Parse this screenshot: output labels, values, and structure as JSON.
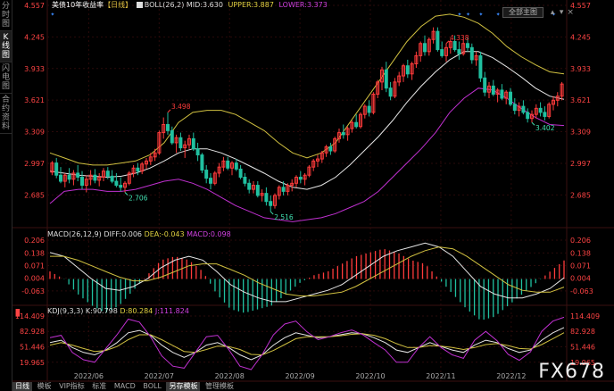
{
  "sidebar": {
    "items": [
      "分时图",
      "K线图",
      "闪电图",
      "合约资料"
    ],
    "active": 1
  },
  "header": {
    "title": "美债10年收益率",
    "period_tag": "【日线】",
    "boll_label": "BOLL(26,2)",
    "mid": "MID:3.630",
    "upper": "UPPER:3.887",
    "lower": "LOWER:3.373",
    "main_select": "全部主图"
  },
  "macd_header": {
    "label": "MACD(26,12,9)",
    "diff": "DIFF:0.006",
    "dea": "DEA:-0.043",
    "macd": "MACD:0.098"
  },
  "kdj_header": {
    "label": "KDJ(9,3,3)",
    "k": "K:90.798",
    "d": "D:80.284",
    "j": "J:111.824"
  },
  "bottom_tabs": [
    "日线",
    "模板",
    "VIP指标",
    "标准",
    "MACD",
    "BOLL",
    "另存模板",
    "管理模板"
  ],
  "bottom_active": [
    0,
    6
  ],
  "watermark": "FX678",
  "colors": {
    "up": "#ff3b3b",
    "down": "#20c0a0",
    "upper": "#d0c040",
    "mid": "#e6e6e6",
    "lower": "#c030d0",
    "axis": "#ff4444"
  },
  "chart_data": [
    {
      "type": "candlestick",
      "y_ticks": [
        "4.557",
        "4.245",
        "3.933",
        "3.621",
        "3.309",
        "2.997",
        "2.685"
      ],
      "x_ticks": [
        "2022/06",
        "2022/07",
        "2022/08",
        "2022/09",
        "2022/10",
        "2022/11",
        "2022/12"
      ],
      "ylim": [
        2.45,
        4.557
      ],
      "annotations": [
        {
          "text": "3.498"
        },
        {
          "text": "2.706"
        },
        {
          "text": "2.516"
        },
        {
          "text": "4.338"
        },
        {
          "text": "3.402"
        }
      ],
      "ohlc": [
        [
          2.91,
          3.02,
          2.88,
          3.0
        ],
        [
          3.0,
          3.05,
          2.85,
          2.88
        ],
        [
          2.88,
          2.96,
          2.8,
          2.82
        ],
        [
          2.82,
          2.9,
          2.76,
          2.88
        ],
        [
          2.88,
          2.95,
          2.8,
          2.84
        ],
        [
          2.84,
          2.93,
          2.78,
          2.9
        ],
        [
          2.9,
          2.98,
          2.82,
          2.86
        ],
        [
          2.86,
          2.92,
          2.74,
          2.78
        ],
        [
          2.78,
          2.88,
          2.71,
          2.84
        ],
        [
          2.84,
          2.93,
          2.78,
          2.88
        ],
        [
          2.88,
          2.94,
          2.8,
          2.83
        ],
        [
          2.83,
          2.9,
          2.77,
          2.86
        ],
        [
          2.86,
          2.95,
          2.82,
          2.92
        ],
        [
          2.92,
          2.96,
          2.84,
          2.87
        ],
        [
          2.87,
          2.93,
          2.8,
          2.82
        ],
        [
          2.82,
          2.9,
          2.76,
          2.78
        ],
        [
          2.78,
          2.86,
          2.72,
          2.76
        ],
        [
          2.76,
          2.82,
          2.71,
          2.8
        ],
        [
          2.8,
          2.92,
          2.78,
          2.9
        ],
        [
          2.9,
          2.98,
          2.86,
          2.95
        ],
        [
          2.95,
          3.0,
          2.88,
          2.92
        ],
        [
          2.92,
          3.01,
          2.89,
          2.99
        ],
        [
          2.99,
          3.05,
          2.94,
          3.02
        ],
        [
          3.02,
          3.1,
          2.98,
          3.06
        ],
        [
          3.06,
          3.14,
          3.02,
          3.1
        ],
        [
          3.1,
          3.32,
          3.08,
          3.3
        ],
        [
          3.3,
          3.45,
          3.24,
          3.38
        ],
        [
          3.38,
          3.5,
          3.28,
          3.32
        ],
        [
          3.32,
          3.36,
          3.18,
          3.2
        ],
        [
          3.2,
          3.28,
          3.1,
          3.25
        ],
        [
          3.25,
          3.3,
          3.12,
          3.15
        ],
        [
          3.15,
          3.22,
          3.05,
          3.18
        ],
        [
          3.18,
          3.28,
          3.14,
          3.24
        ],
        [
          3.24,
          3.3,
          3.12,
          3.14
        ],
        [
          3.14,
          3.2,
          3.02,
          3.08
        ],
        [
          3.08,
          3.1,
          2.9,
          2.93
        ],
        [
          2.93,
          2.98,
          2.8,
          2.85
        ],
        [
          2.85,
          2.9,
          2.74,
          2.8
        ],
        [
          2.8,
          2.92,
          2.78,
          2.9
        ],
        [
          2.9,
          3.0,
          2.86,
          2.96
        ],
        [
          2.96,
          3.06,
          2.92,
          3.02
        ],
        [
          3.02,
          3.06,
          2.93,
          2.95
        ],
        [
          2.95,
          3.02,
          2.88,
          3.0
        ],
        [
          3.0,
          3.04,
          2.92,
          2.94
        ],
        [
          2.94,
          2.98,
          2.84,
          2.86
        ],
        [
          2.86,
          2.9,
          2.77,
          2.8
        ],
        [
          2.8,
          2.84,
          2.7,
          2.74
        ],
        [
          2.74,
          2.82,
          2.7,
          2.78
        ],
        [
          2.78,
          2.82,
          2.66,
          2.68
        ],
        [
          2.68,
          2.74,
          2.62,
          2.7
        ],
        [
          2.7,
          2.76,
          2.58,
          2.62
        ],
        [
          2.62,
          2.68,
          2.52,
          2.58
        ],
        [
          2.58,
          2.7,
          2.55,
          2.68
        ],
        [
          2.68,
          2.78,
          2.64,
          2.76
        ],
        [
          2.76,
          2.82,
          2.68,
          2.72
        ],
        [
          2.72,
          2.8,
          2.68,
          2.78
        ],
        [
          2.78,
          2.84,
          2.72,
          2.8
        ],
        [
          2.8,
          2.88,
          2.76,
          2.86
        ],
        [
          2.86,
          2.92,
          2.8,
          2.84
        ],
        [
          2.84,
          2.9,
          2.78,
          2.88
        ],
        [
          2.88,
          2.98,
          2.86,
          2.96
        ],
        [
          2.96,
          3.04,
          2.92,
          3.02
        ],
        [
          3.02,
          3.08,
          2.96,
          3.04
        ],
        [
          3.04,
          3.12,
          3.0,
          3.1
        ],
        [
          3.1,
          3.18,
          3.06,
          3.16
        ],
        [
          3.16,
          3.2,
          3.08,
          3.12
        ],
        [
          3.12,
          3.26,
          3.1,
          3.24
        ],
        [
          3.24,
          3.34,
          3.2,
          3.3
        ],
        [
          3.3,
          3.38,
          3.24,
          3.28
        ],
        [
          3.28,
          3.36,
          3.22,
          3.34
        ],
        [
          3.34,
          3.42,
          3.3,
          3.4
        ],
        [
          3.4,
          3.48,
          3.34,
          3.36
        ],
        [
          3.36,
          3.5,
          3.34,
          3.48
        ],
        [
          3.48,
          3.58,
          3.44,
          3.56
        ],
        [
          3.56,
          3.62,
          3.46,
          3.5
        ],
        [
          3.5,
          3.7,
          3.48,
          3.68
        ],
        [
          3.68,
          3.82,
          3.64,
          3.8
        ],
        [
          3.8,
          3.95,
          3.72,
          3.92
        ],
        [
          3.92,
          4.0,
          3.7,
          3.74
        ],
        [
          3.74,
          3.8,
          3.62,
          3.66
        ],
        [
          3.66,
          3.84,
          3.64,
          3.8
        ],
        [
          3.8,
          3.9,
          3.76,
          3.86
        ],
        [
          3.86,
          3.98,
          3.8,
          3.96
        ],
        [
          3.96,
          4.02,
          3.84,
          3.88
        ],
        [
          3.88,
          4.0,
          3.82,
          3.98
        ],
        [
          3.98,
          4.1,
          3.94,
          4.06
        ],
        [
          4.06,
          4.2,
          4.0,
          4.18
        ],
        [
          4.18,
          4.26,
          4.06,
          4.1
        ],
        [
          4.1,
          4.24,
          4.06,
          4.22
        ],
        [
          4.22,
          4.34,
          4.18,
          4.3
        ],
        [
          4.3,
          4.34,
          4.1,
          4.12
        ],
        [
          4.12,
          4.2,
          4.04,
          4.06
        ],
        [
          4.06,
          4.18,
          4.0,
          4.14
        ],
        [
          4.14,
          4.22,
          4.08,
          4.2
        ],
        [
          4.2,
          4.26,
          4.1,
          4.12
        ],
        [
          4.12,
          4.2,
          4.02,
          4.08
        ],
        [
          4.08,
          4.22,
          4.06,
          4.18
        ],
        [
          4.18,
          4.24,
          4.1,
          4.14
        ],
        [
          4.14,
          4.18,
          3.98,
          4.02
        ],
        [
          4.02,
          4.1,
          3.96,
          4.06
        ],
        [
          4.06,
          4.1,
          3.8,
          3.84
        ],
        [
          3.84,
          3.9,
          3.66,
          3.7
        ],
        [
          3.7,
          3.8,
          3.64,
          3.76
        ],
        [
          3.76,
          3.82,
          3.66,
          3.68
        ],
        [
          3.68,
          3.74,
          3.6,
          3.72
        ],
        [
          3.72,
          3.78,
          3.62,
          3.64
        ],
        [
          3.64,
          3.72,
          3.58,
          3.7
        ],
        [
          3.7,
          3.74,
          3.56,
          3.58
        ],
        [
          3.58,
          3.64,
          3.48,
          3.52
        ],
        [
          3.52,
          3.6,
          3.46,
          3.56
        ],
        [
          3.56,
          3.62,
          3.48,
          3.5
        ],
        [
          3.5,
          3.54,
          3.4,
          3.44
        ],
        [
          3.44,
          3.52,
          3.4,
          3.48
        ],
        [
          3.48,
          3.58,
          3.44,
          3.54
        ],
        [
          3.54,
          3.6,
          3.46,
          3.5
        ],
        [
          3.5,
          3.56,
          3.42,
          3.46
        ],
        [
          3.46,
          3.6,
          3.44,
          3.58
        ],
        [
          3.58,
          3.66,
          3.52,
          3.62
        ],
        [
          3.62,
          3.7,
          3.56,
          3.66
        ],
        [
          3.66,
          3.8,
          3.62,
          3.78
        ]
      ],
      "boll": {
        "upper": [
          3.1,
          3.05,
          3.0,
          2.98,
          2.98,
          3.0,
          3.02,
          3.08,
          3.2,
          3.4,
          3.5,
          3.52,
          3.52,
          3.48,
          3.4,
          3.32,
          3.2,
          3.1,
          3.05,
          3.1,
          3.2,
          3.4,
          3.6,
          3.8,
          4.0,
          4.2,
          4.35,
          4.45,
          4.47,
          4.44,
          4.38,
          4.28,
          4.15,
          4.05,
          3.97,
          3.9,
          3.88
        ],
        "mid": [
          2.92,
          2.9,
          2.88,
          2.87,
          2.86,
          2.87,
          2.9,
          2.95,
          3.02,
          3.1,
          3.14,
          3.14,
          3.1,
          3.04,
          2.97,
          2.9,
          2.82,
          2.76,
          2.74,
          2.78,
          2.86,
          2.98,
          3.12,
          3.26,
          3.42,
          3.6,
          3.76,
          3.9,
          4.02,
          4.1,
          4.1,
          4.04,
          3.95,
          3.85,
          3.74,
          3.66,
          3.63
        ],
        "lower": [
          2.6,
          2.72,
          2.74,
          2.74,
          2.72,
          2.72,
          2.74,
          2.78,
          2.82,
          2.84,
          2.8,
          2.74,
          2.66,
          2.58,
          2.52,
          2.46,
          2.44,
          2.42,
          2.44,
          2.46,
          2.5,
          2.56,
          2.62,
          2.72,
          2.86,
          3.0,
          3.14,
          3.3,
          3.5,
          3.64,
          3.74,
          3.72,
          3.64,
          3.54,
          3.45,
          3.38,
          3.37
        ]
      }
    },
    {
      "type": "macd",
      "y_ticks": [
        "0.206",
        "0.138",
        "0.071",
        "0.004",
        "-0.063"
      ],
      "ylim": [
        -0.13,
        0.22
      ],
      "diff": [
        0.14,
        0.12,
        0.06,
        0.0,
        -0.05,
        -0.06,
        -0.04,
        0.0,
        0.06,
        0.1,
        0.12,
        0.1,
        0.04,
        -0.03,
        -0.07,
        -0.1,
        -0.12,
        -0.12,
        -0.1,
        -0.08,
        -0.06,
        -0.03,
        0.02,
        0.07,
        0.12,
        0.15,
        0.17,
        0.19,
        0.17,
        0.12,
        0.04,
        -0.04,
        -0.08,
        -0.1,
        -0.1,
        -0.08,
        -0.05,
        0.006
      ],
      "dea": [
        0.12,
        0.12,
        0.1,
        0.07,
        0.04,
        0.01,
        -0.01,
        -0.01,
        0.01,
        0.04,
        0.07,
        0.08,
        0.08,
        0.05,
        0.02,
        -0.02,
        -0.05,
        -0.08,
        -0.09,
        -0.09,
        -0.08,
        -0.07,
        -0.04,
        0.0,
        0.04,
        0.08,
        0.12,
        0.15,
        0.17,
        0.16,
        0.12,
        0.07,
        0.02,
        -0.03,
        -0.06,
        -0.07,
        -0.07,
        -0.043
      ]
    },
    {
      "type": "kdj",
      "y_ticks": [
        "114.409",
        "82.928",
        "51.446",
        "19.965"
      ],
      "ylim": [
        5,
        118
      ],
      "k": [
        60,
        65,
        50,
        40,
        35,
        45,
        60,
        80,
        85,
        75,
        55,
        40,
        30,
        40,
        55,
        60,
        50,
        35,
        25,
        35,
        55,
        70,
        80,
        75,
        70,
        72,
        76,
        80,
        78,
        70,
        60,
        45,
        40,
        50,
        60,
        52,
        45,
        40,
        55,
        65,
        60,
        48,
        40,
        45,
        65,
        80,
        90.8
      ],
      "d": [
        55,
        60,
        55,
        48,
        42,
        44,
        52,
        66,
        76,
        76,
        66,
        54,
        42,
        40,
        46,
        53,
        52,
        46,
        36,
        35,
        44,
        56,
        68,
        72,
        72,
        72,
        74,
        77,
        78,
        75,
        68,
        58,
        50,
        50,
        54,
        53,
        50,
        46,
        50,
        56,
        58,
        54,
        48,
        47,
        56,
        68,
        80.3
      ],
      "j": [
        70,
        75,
        40,
        25,
        20,
        48,
        76,
        108,
        102,
        72,
        33,
        12,
        8,
        40,
        72,
        75,
        46,
        12,
        5,
        36,
        76,
        98,
        104,
        82,
        66,
        72,
        80,
        86,
        76,
        60,
        45,
        20,
        20,
        50,
        72,
        50,
        35,
        28,
        65,
        83,
        64,
        36,
        24,
        41,
        83,
        104,
        111.8
      ]
    }
  ]
}
